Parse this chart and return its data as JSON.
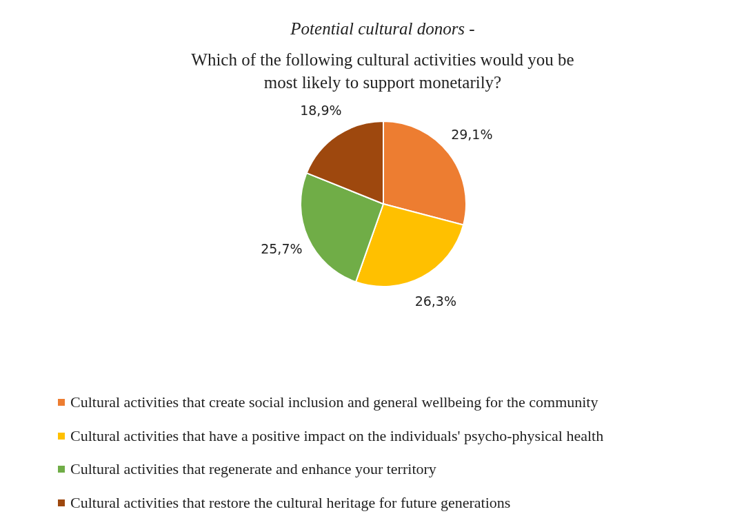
{
  "chart_data": {
    "type": "pie",
    "title": "Potential cultural donors -",
    "subtitle": "Which of the following cultural activities would you be most likely to support monetarily?",
    "categories": [
      "Cultural activities that create social inclusion and general wellbeing for the community",
      "Cultural activities that have a positive impact on the individuals' psycho-physical health",
      "Cultural activities that regenerate and enhance your territory",
      "Cultural activities that restore the cultural heritage for future generations"
    ],
    "values": [
      29.1,
      26.3,
      25.7,
      18.9
    ],
    "colors": [
      "#ed7d31",
      "#ffc000",
      "#70ad47",
      "#9e480e"
    ],
    "value_labels": [
      "29,1%",
      "26,3%",
      "25,7%",
      "18,9%"
    ],
    "legend": "bottom"
  }
}
